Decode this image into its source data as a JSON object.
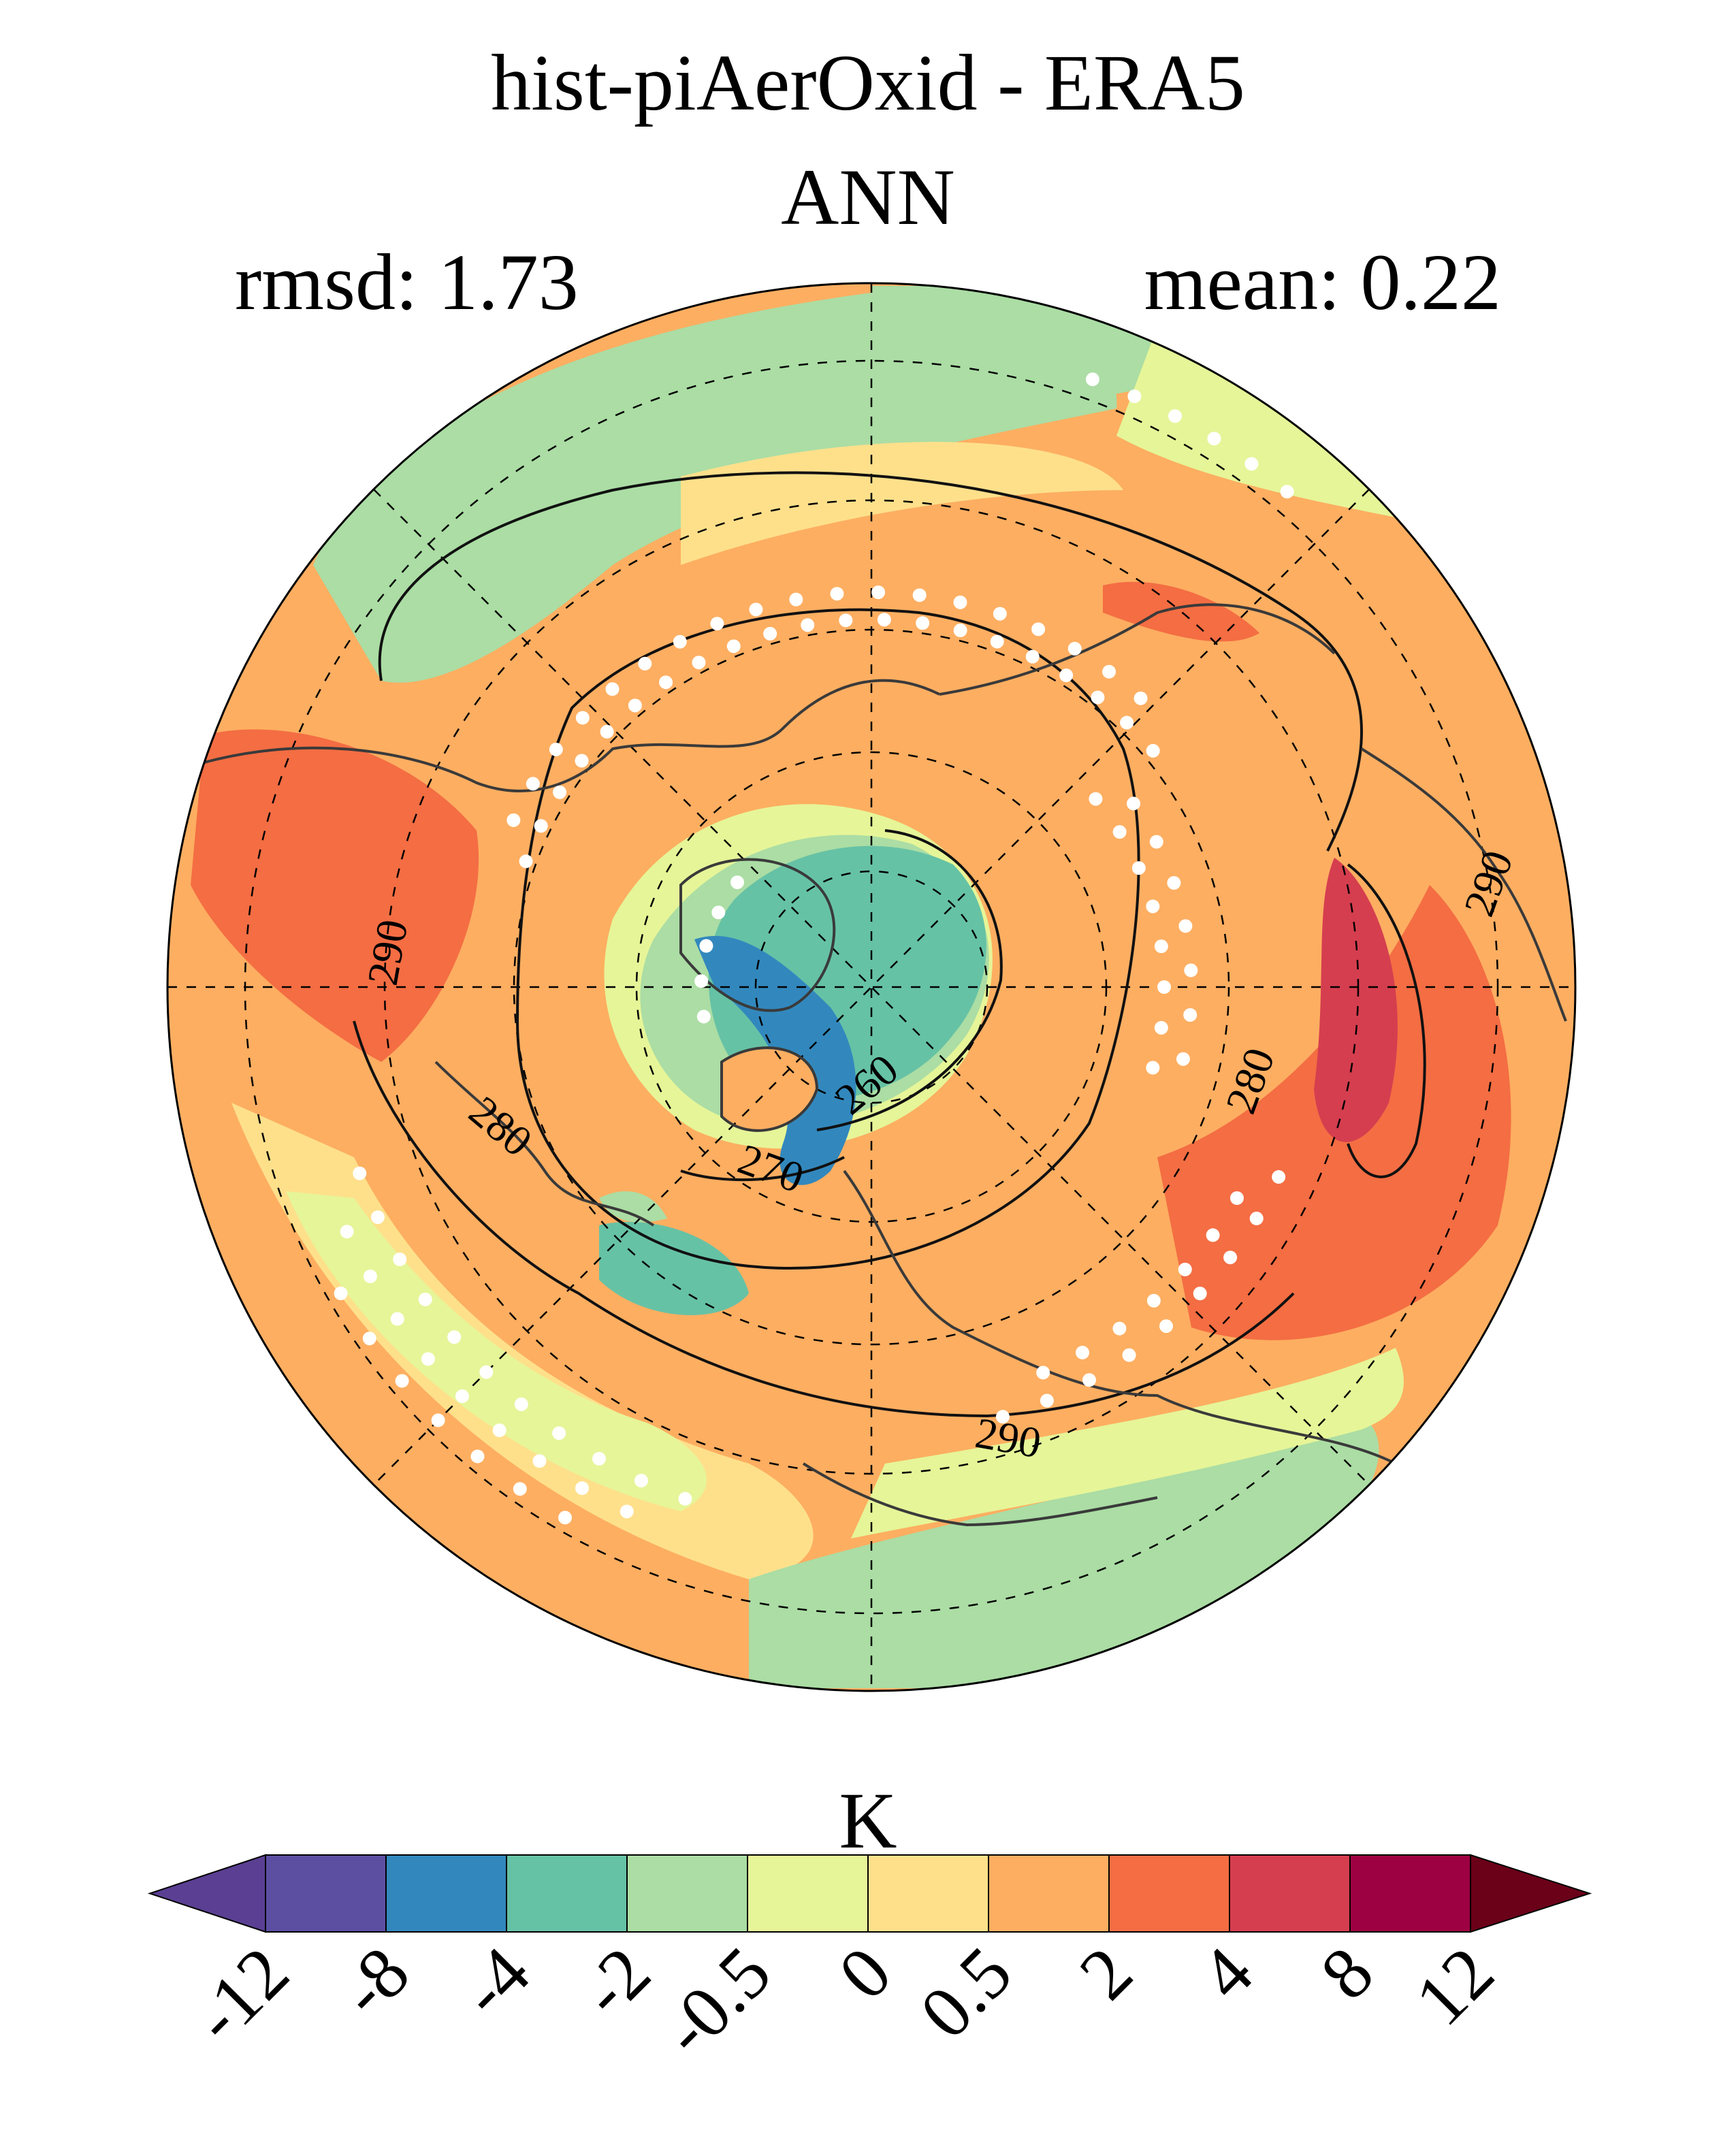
{
  "header": {
    "title": "hist-piAerOxid - ERA5",
    "season": "ANN",
    "rmsd": "rmsd: 1.73",
    "mean": "mean: 0.22"
  },
  "map": {
    "projection": "north polar stereographic",
    "field": "near-surface air temperature difference",
    "stippling": "white dots",
    "contour_labels": [
      "290",
      "290",
      "280",
      "280",
      "270",
      "260",
      "290"
    ]
  },
  "colorbar": {
    "units": "K",
    "tick_labels": [
      "-12",
      "-8",
      "-4",
      "-2",
      "-0.5",
      "0",
      "0.5",
      "2",
      "4",
      "8",
      "12"
    ],
    "colors": [
      "#5a3f93",
      "#5c4fa2",
      "#3288bd",
      "#66c2a5",
      "#abdda4",
      "#e6f598",
      "#fee08b",
      "#fdae61",
      "#f46d43",
      "#d53e4f",
      "#9e0142",
      "#6b0019"
    ],
    "extend": "both"
  }
}
